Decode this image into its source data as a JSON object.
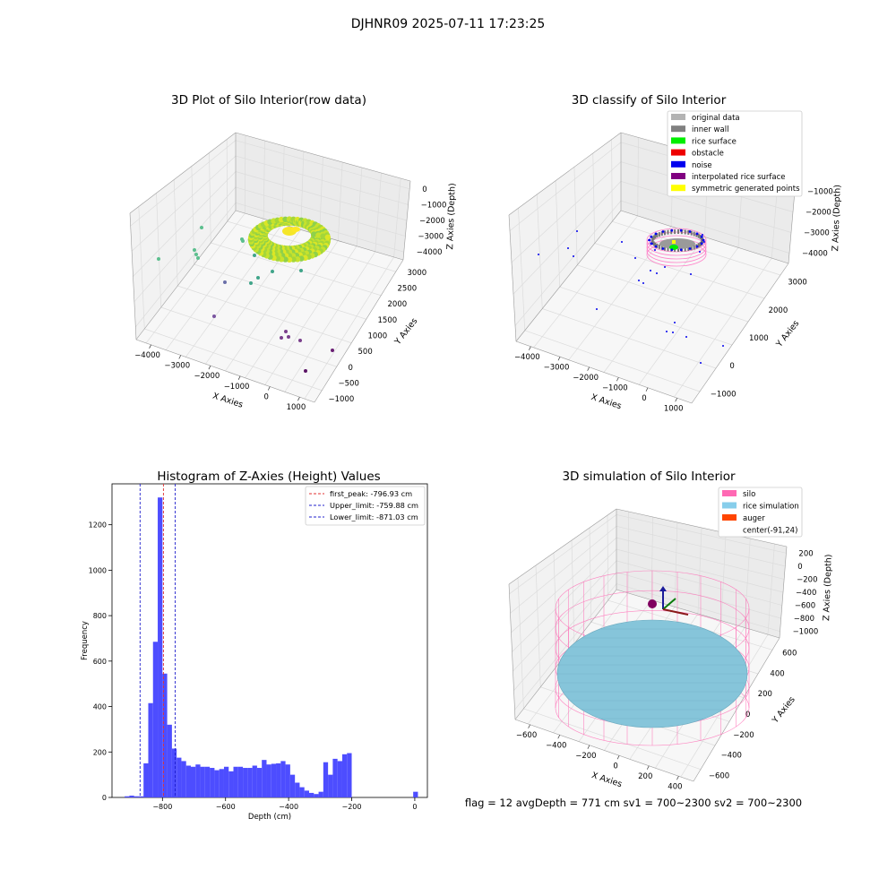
{
  "suptitle": "DJHNR09 2025-07-11 17:23:25",
  "footer": "flag = 12   avgDepth = 771 cm  sv1 = 700~2300  sv2 = 700~2300",
  "chart_data": [
    {
      "type": "scatter",
      "title": "3D Plot of Silo Interior(row data)",
      "xlabel": "X Axies",
      "ylabel": "Y Axies",
      "zlabel": "Z Axies (Depth)",
      "x_ticks": [
        "−4000",
        "−3000",
        "−2000",
        "−1000",
        "0",
        "1000"
      ],
      "y_ticks": [
        "−1000",
        "−500",
        "0",
        "500",
        "1000",
        "1500",
        "2000",
        "2500",
        "3000"
      ],
      "z_ticks": [
        "0",
        "−1000",
        "−2000",
        "−3000",
        "−4000"
      ],
      "colormap": "viridis",
      "outlier_points": [
        {
          "x": -3700,
          "y": 2400,
          "z": -2700
        },
        {
          "x": -3300,
          "y": 2300,
          "z": -2300
        },
        {
          "x": -3300,
          "y": 2300,
          "z": -2450
        },
        {
          "x": -3000,
          "y": 2500,
          "z": -1900
        },
        {
          "x": -2400,
          "y": 2200,
          "z": -1700
        },
        {
          "x": -2400,
          "y": 2200,
          "z": -1750
        },
        {
          "x": -2600,
          "y": 1600,
          "z": -3100
        },
        {
          "x": -2000,
          "y": 1800,
          "z": -2800
        },
        {
          "x": -1700,
          "y": 1900,
          "z": -2900
        },
        {
          "x": -1400,
          "y": 2000,
          "z": -2800
        },
        {
          "x": -2800,
          "y": 900,
          "z": -3900
        },
        {
          "x": -800,
          "y": 1500,
          "z": -2000
        },
        {
          "x": -1000,
          "y": 800,
          "z": -3700
        },
        {
          "x": -900,
          "y": 700,
          "z": -3900
        },
        {
          "x": -800,
          "y": 700,
          "z": -3850
        },
        {
          "x": -600,
          "y": 500,
          "z": -3950
        },
        {
          "x": 300,
          "y": 500,
          "z": -3900
        },
        {
          "x": 400,
          "y": 0,
          "z": -4200
        }
      ]
    },
    {
      "type": "scatter",
      "title": "3D classify of Silo Interior",
      "xlabel": "X Axies",
      "ylabel": "Y Axies",
      "zlabel": "Z Axies (Depth)",
      "x_ticks": [
        "−4000",
        "−3000",
        "−2000",
        "−1000",
        "0",
        "1000"
      ],
      "y_ticks": [
        "−1000",
        "0",
        "1000",
        "2000",
        "3000"
      ],
      "z_ticks": [
        "−1000",
        "−2000",
        "−3000",
        "−4000"
      ],
      "legend": [
        {
          "label": "original data",
          "color": "#b3b3b3"
        },
        {
          "label": "inner wall",
          "color": "#808080"
        },
        {
          "label": "rice surface",
          "color": "#00ee00"
        },
        {
          "label": "obstacle",
          "color": "#ee0000"
        },
        {
          "label": "noise",
          "color": "#0000ee"
        },
        {
          "label": "interpolated rice surface",
          "color": "#800080"
        },
        {
          "label": "symmetric generated points",
          "color": "#ffff00"
        }
      ],
      "legend_position": "top-right"
    },
    {
      "type": "bar",
      "title": "Histogram of Z-Axies (Height) Values",
      "xlabel": "Depth (cm)",
      "ylabel": "Frequency",
      "xlim": [
        -960,
        40
      ],
      "ylim": [
        0,
        1380
      ],
      "x_ticks": [
        -800,
        -600,
        -400,
        -200,
        0
      ],
      "y_ticks": [
        0,
        200,
        400,
        600,
        800,
        1000,
        1200
      ],
      "bin_width": 15,
      "bins_start": [
        -920,
        -905,
        -890,
        -875,
        -860,
        -845,
        -830,
        -815,
        -800,
        -785,
        -770,
        -755,
        -740,
        -725,
        -710,
        -695,
        -680,
        -665,
        -650,
        -635,
        -620,
        -605,
        -590,
        -575,
        -560,
        -545,
        -530,
        -515,
        -500,
        -485,
        -470,
        -455,
        -440,
        -425,
        -410,
        -395,
        -380,
        -365,
        -350,
        -335,
        -320,
        -305,
        -290,
        -275,
        -260,
        -245,
        -230,
        -215,
        -200,
        -185,
        -170,
        -155,
        -140,
        -125,
        -110,
        -95,
        -80,
        -65,
        -50,
        -35,
        -20,
        -5
      ],
      "values": [
        5,
        8,
        5,
        5,
        150,
        415,
        685,
        1320,
        545,
        320,
        215,
        175,
        160,
        140,
        135,
        145,
        135,
        135,
        130,
        120,
        125,
        135,
        115,
        135,
        135,
        130,
        130,
        140,
        130,
        165,
        145,
        148,
        150,
        160,
        145,
        100,
        65,
        45,
        30,
        20,
        15,
        25,
        155,
        100,
        170,
        160,
        190,
        195,
        0,
        0,
        0,
        0,
        0,
        0,
        0,
        0,
        0,
        0,
        0,
        0,
        0,
        25
      ],
      "color": "#4d4dff",
      "lines": [
        {
          "label": "first_peak: -796.93 cm",
          "x": -796.93,
          "color": "#e03030"
        },
        {
          "label": "Upper_limit: -759.88 cm",
          "x": -759.88,
          "color": "#2020cc"
        },
        {
          "label": "Lower_limit: -871.03 cm",
          "x": -871.03,
          "color": "#2020cc"
        }
      ],
      "legend_position": "top-right"
    },
    {
      "type": "surface",
      "title": "3D simulation of Silo Interior",
      "xlabel": "X Axies",
      "ylabel": "Y Axies",
      "zlabel": "Z Axies (Depth)",
      "x_ticks": [
        "−600",
        "−400",
        "−200",
        "0",
        "200",
        "400"
      ],
      "y_ticks": [
        "−600",
        "−400",
        "−200",
        "0",
        "200",
        "400",
        "600"
      ],
      "z_ticks": [
        "200",
        "0",
        "−200",
        "−400",
        "−600",
        "−800",
        "−1000"
      ],
      "legend": [
        {
          "label": "silo",
          "color": "#ff69b4"
        },
        {
          "label": "rice simulation",
          "color": "#87ceeb"
        },
        {
          "label": "auger",
          "color": "#ff4500"
        },
        {
          "label": "center(-91,24)",
          "color": "none"
        }
      ],
      "legend_position": "top-right"
    }
  ]
}
